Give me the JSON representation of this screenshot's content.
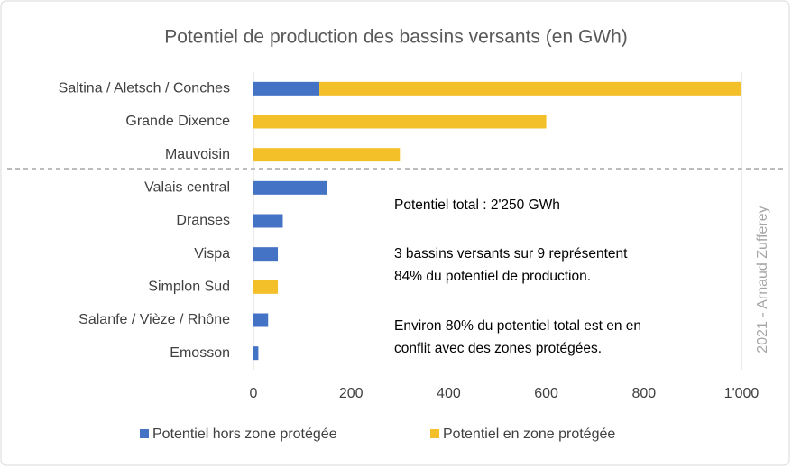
{
  "chart_data": {
    "type": "stacked-barh",
    "title": "Potentiel de production des bassins versants (en GWh)",
    "categories": [
      "Saltina / Aletsch / Conches",
      "Grande Dixence",
      "Mauvoisin",
      "Valais central",
      "Dranses",
      "Vispa",
      "Simplon Sud",
      "Salanfe / Vièze / Rhône",
      "Emosson"
    ],
    "series": [
      {
        "name": "Potentiel hors zone protégée",
        "color": "#4472c4",
        "values": [
          135,
          0,
          0,
          150,
          60,
          50,
          0,
          30,
          10
        ]
      },
      {
        "name": "Potentiel en zone protégée",
        "color": "#f4c02a",
        "values": [
          865,
          600,
          300,
          0,
          0,
          0,
          50,
          0,
          0
        ]
      }
    ],
    "xlim": [
      0,
      1000
    ],
    "xticks": [
      0,
      200,
      400,
      600,
      800,
      {
        "value": 1000,
        "label": "1'000"
      }
    ],
    "legend": "bottom",
    "annotations": [
      "Potentiel total : 2'250 GWh",
      "3 bassins versants sur 9 représentent",
      "84% du potentiel de production.",
      "Environ 80% du potentiel total est en en",
      "conflit avec des zones protégées."
    ],
    "credit": "2021 - Arnaud Zufferey"
  }
}
